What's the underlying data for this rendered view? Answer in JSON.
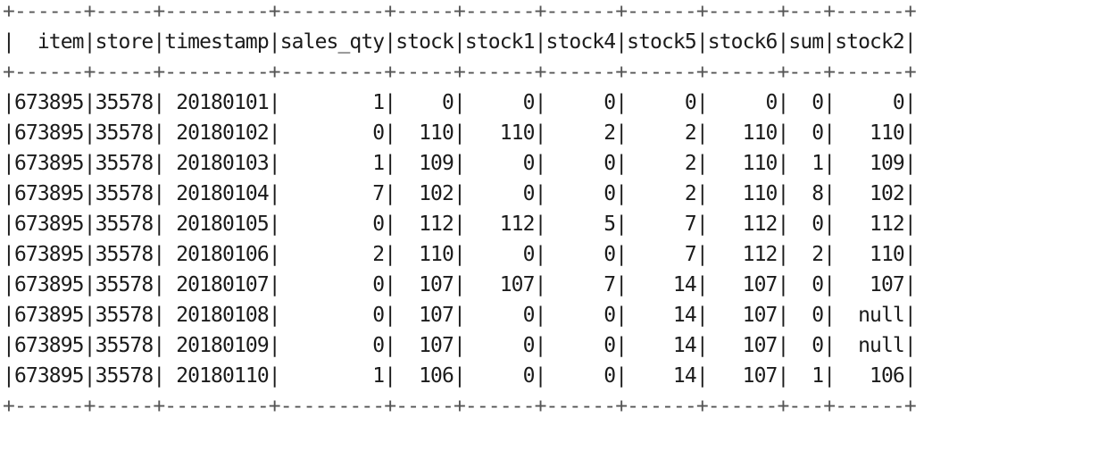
{
  "table": {
    "columns": [
      "item",
      "store",
      "timestamp",
      "sales_qty",
      "stock",
      "stock1",
      "stock4",
      "stock5",
      "stock6",
      "sum",
      "stock2"
    ],
    "rows": [
      [
        "673895",
        "35578",
        "20180101",
        "1",
        "0",
        "0",
        "0",
        "0",
        "0",
        "0",
        "0"
      ],
      [
        "673895",
        "35578",
        "20180102",
        "0",
        "110",
        "110",
        "2",
        "2",
        "110",
        "0",
        "110"
      ],
      [
        "673895",
        "35578",
        "20180103",
        "1",
        "109",
        "0",
        "0",
        "2",
        "110",
        "1",
        "109"
      ],
      [
        "673895",
        "35578",
        "20180104",
        "7",
        "102",
        "0",
        "0",
        "2",
        "110",
        "8",
        "102"
      ],
      [
        "673895",
        "35578",
        "20180105",
        "0",
        "112",
        "112",
        "5",
        "7",
        "112",
        "0",
        "112"
      ],
      [
        "673895",
        "35578",
        "20180106",
        "2",
        "110",
        "0",
        "0",
        "7",
        "112",
        "2",
        "110"
      ],
      [
        "673895",
        "35578",
        "20180107",
        "0",
        "107",
        "107",
        "7",
        "14",
        "107",
        "0",
        "107"
      ],
      [
        "673895",
        "35578",
        "20180108",
        "0",
        "107",
        "0",
        "0",
        "14",
        "107",
        "0",
        "null"
      ],
      [
        "673895",
        "35578",
        "20180109",
        "0",
        "107",
        "0",
        "0",
        "14",
        "107",
        "0",
        "null"
      ],
      [
        "673895",
        "35578",
        "20180110",
        "1",
        "106",
        "0",
        "0",
        "14",
        "107",
        "1",
        "106"
      ]
    ]
  }
}
